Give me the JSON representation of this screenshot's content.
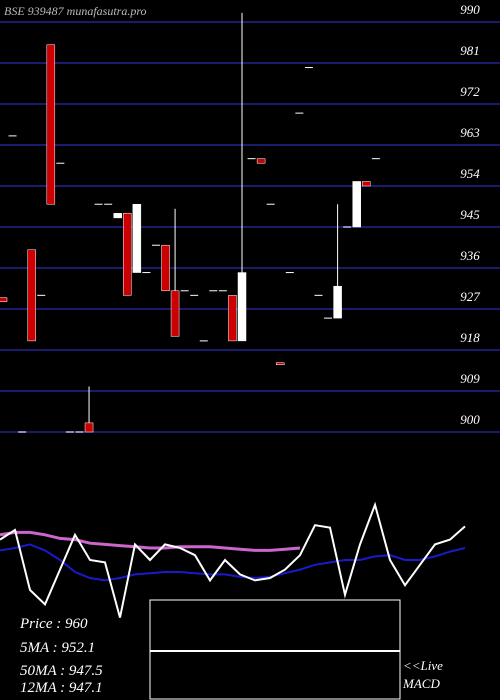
{
  "chart_data": {
    "type": "candlestick",
    "title": "BSE 939487 munafasutra.pro",
    "ylim": [
      900,
      990
    ],
    "yticks": [
      900,
      909,
      918,
      927,
      936,
      945,
      954,
      963,
      972,
      981,
      990
    ],
    "grid": true,
    "up_color": "#ffffff",
    "down_color": "#cc0000",
    "grid_color": "#1a1a6e",
    "open": [
      929.5,
      965,
      900,
      940,
      930,
      985,
      959,
      900,
      900,
      902,
      950,
      950,
      947,
      948,
      935,
      935,
      941,
      941,
      931,
      931,
      930,
      920,
      931,
      931,
      930,
      920,
      960,
      960,
      950,
      915.2,
      935,
      970,
      980,
      930,
      925,
      925,
      945,
      945,
      955,
      960
    ],
    "high": [
      929.5,
      965,
      900,
      940,
      930,
      985,
      959,
      900,
      900,
      910,
      950,
      950,
      948,
      948,
      950,
      935,
      941,
      941,
      949,
      931,
      930,
      920,
      931,
      931,
      930,
      992,
      960,
      960,
      950,
      915.2,
      935,
      970,
      980,
      930,
      925,
      950,
      945,
      955,
      955,
      960
    ],
    "low": [
      928.6,
      965,
      900,
      920,
      930,
      950,
      959,
      900,
      900,
      900,
      950,
      950,
      947,
      930,
      935,
      935,
      941,
      931,
      921,
      931,
      930,
      920,
      931,
      931,
      920,
      920,
      960,
      959,
      950,
      914.8,
      935,
      970,
      980,
      930,
      925,
      925,
      945,
      945,
      954,
      960
    ],
    "close": [
      928.6,
      965,
      900,
      920,
      930,
      950,
      959,
      900,
      900,
      900,
      950,
      950,
      948,
      930,
      950,
      935,
      941,
      931,
      921,
      931,
      930,
      920,
      931,
      931,
      920,
      935,
      960,
      959,
      950,
      914.8,
      935,
      970,
      980,
      930,
      925,
      932,
      945,
      955,
      954,
      960
    ],
    "stats": [
      "Price   : 960",
      "5MA : 952.1",
      "50MA : 947.5",
      "12MA : 947.1"
    ],
    "macd_label": [
      "<<Live",
      "MACD"
    ],
    "indicator": {
      "ylim": [
        0,
        100
      ],
      "series": [
        {
          "color": "#ffffff",
          "values": [
            67,
            75,
            25,
            13,
            42,
            71,
            50,
            48,
            2,
            63,
            50,
            63,
            60,
            54,
            33,
            50,
            38,
            33,
            35,
            42,
            54,
            79,
            77,
            21,
            63,
            96,
            50,
            29,
            46,
            63,
            67,
            78
          ]
        },
        {
          "color": "#cc66cc",
          "values": [
            71,
            73,
            73,
            71,
            68,
            67,
            64,
            63,
            62,
            61,
            60,
            60,
            61,
            61,
            61,
            60,
            59,
            58,
            58,
            59,
            60,
            null,
            null,
            null,
            null,
            null,
            null,
            null,
            null,
            null,
            null,
            null
          ]
        },
        {
          "color": "#1a1acc",
          "values": [
            58,
            60,
            63,
            58,
            50,
            40,
            35,
            33,
            35,
            38,
            39,
            40,
            40,
            39,
            38,
            38,
            36,
            35,
            36,
            39,
            42,
            46,
            48,
            50,
            50,
            53,
            54,
            50,
            50,
            53,
            57,
            60
          ]
        }
      ]
    }
  }
}
